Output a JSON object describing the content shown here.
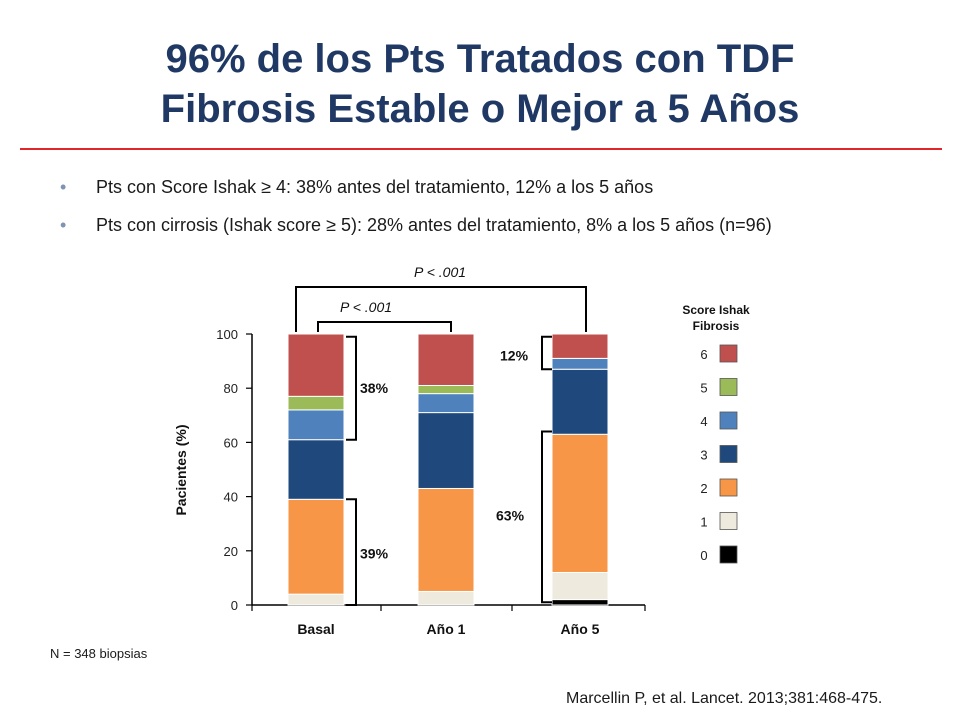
{
  "title": {
    "line1": "96% de los Pts Tratados con TDF",
    "line2": "Fibrosis Estable o Mejor a 5 Años"
  },
  "bullets": [
    "Pts con Score Ishak ≥ 4: 38% antes del tratamiento, 12% a los 5 años",
    "Pts con cirrosis (Ishak score ≥ 5): 28% antes del tratamiento, 8% a los 5 años (n=96)"
  ],
  "note": "N = 348 biopsias",
  "reference": "Marcellin P, et al. Lancet. 2013;381:468-475.",
  "chart_data": {
    "type": "bar",
    "stacked": true,
    "categories": [
      "Basal",
      "Año 1",
      "Año 5"
    ],
    "ylabel": "Pacientes (%)",
    "xlabel": "",
    "ylim": [
      0,
      100
    ],
    "yticks": [
      0,
      20,
      40,
      60,
      80,
      100
    ],
    "grid": false,
    "series": [
      {
        "name": "0",
        "color": "#000000",
        "values": [
          0,
          0,
          2
        ]
      },
      {
        "name": "1",
        "color": "#eeeade",
        "values": [
          4,
          5,
          10
        ]
      },
      {
        "name": "2",
        "color": "#f79646",
        "values": [
          35,
          38,
          51
        ]
      },
      {
        "name": "3",
        "color": "#1f497d",
        "values": [
          22,
          28,
          24
        ]
      },
      {
        "name": "4",
        "color": "#4f81bd",
        "values": [
          11,
          7,
          4
        ]
      },
      {
        "name": "5",
        "color": "#9bbb59",
        "values": [
          5,
          3,
          0
        ]
      },
      {
        "name": "6",
        "color": "#c0504d",
        "values": [
          23,
          19,
          9
        ]
      }
    ],
    "legend": {
      "title_line1": "Score Ishak",
      "title_line2": "Fibrosis",
      "placement": "right",
      "order": [
        "6",
        "5",
        "4",
        "3",
        "2",
        "1",
        "0"
      ]
    },
    "annotations": {
      "bracket_basal_top": "38%",
      "bracket_basal_bottom": "39%",
      "bracket_y5_top": "12%",
      "bracket_y5_bottom": "63%",
      "p_basal_ano1": "P < .001",
      "p_basal_ano5": "P < .001"
    }
  }
}
